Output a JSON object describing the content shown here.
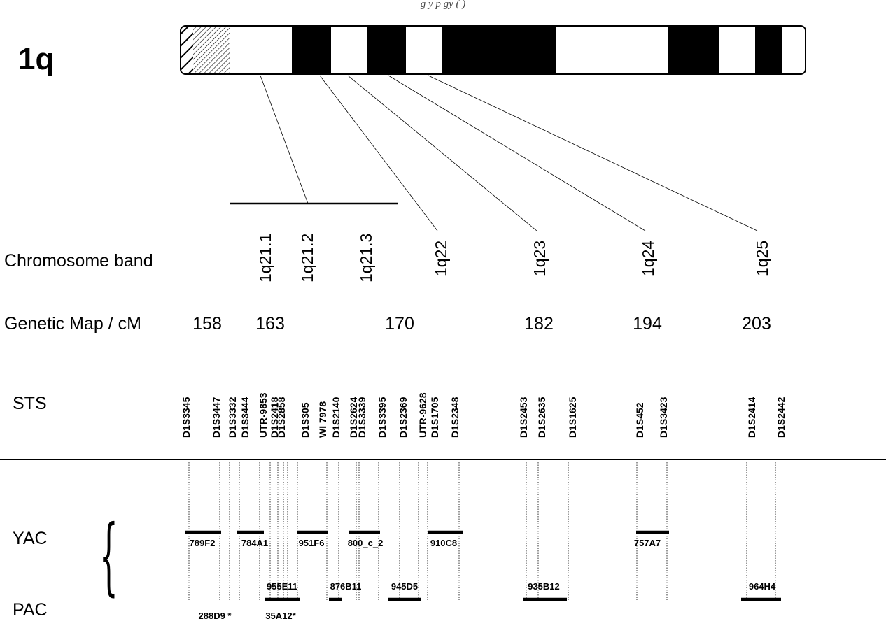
{
  "header": {
    "caption": "g               y   p      gy  (    )"
  },
  "chromosome": {
    "arm_label": "1q"
  },
  "rows": {
    "chromosome_band": "Chromosome band",
    "genetic_map": "Genetic Map / cM",
    "sts": "STS",
    "yac": "YAC",
    "pac": "PAC"
  },
  "decor": {
    "brace": "{"
  },
  "bands": [
    "1q21.1",
    "1q21.2",
    "1q21.3",
    "1q22",
    "1q23",
    "1q24",
    "1q25"
  ],
  "genetic_map": [
    "158",
    "163",
    "170",
    "182",
    "194",
    "203"
  ],
  "sts": [
    "D1S3345",
    "D1S3447",
    "D1S3332",
    "D1S3444",
    "UTR-9853",
    "D1S2418",
    "D1S2858",
    "D1S305",
    "WI 7978",
    "D1S2140",
    "D1S2624",
    "D1S3339",
    "D1S3395",
    "D1S2369",
    "UTR-9628",
    "D1S1705",
    "D1S2348",
    "D1S2453",
    "D1S2635",
    "D1S1625",
    "D1S452",
    "D1S3423",
    "D1S2414",
    "D1S2442"
  ],
  "yac": [
    "789F2",
    "784A1",
    "951F6",
    "800_c_2",
    "910C8",
    "757A7"
  ],
  "pac": [
    "955E11",
    "876B11",
    "945D5",
    "935B12",
    "964H4",
    "288D9 *",
    "35A12*"
  ],
  "colors": {
    "ink": "#000000",
    "paper": "#ffffff"
  }
}
